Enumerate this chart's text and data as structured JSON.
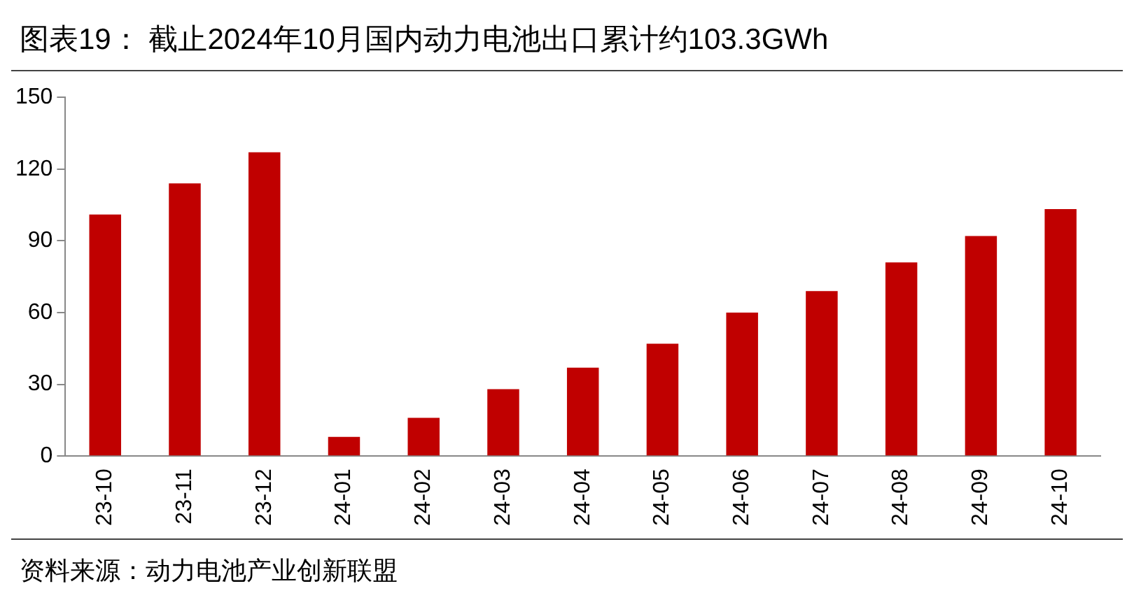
{
  "chart_data": {
    "type": "bar",
    "title": "图表19：  截止2024年10月国内动力电池出口累计约103.3GWh",
    "categories": [
      "23-10",
      "23-11",
      "23-12",
      "24-01",
      "24-02",
      "24-03",
      "24-04",
      "24-05",
      "24-06",
      "24-07",
      "24-08",
      "24-09",
      "24-10"
    ],
    "values": [
      101,
      114,
      127,
      8,
      16,
      28,
      37,
      47,
      60,
      69,
      81,
      92,
      103.3
    ],
    "color": "#c00000",
    "ylim": [
      0,
      150
    ],
    "yticks": [
      0,
      30,
      60,
      90,
      120,
      150
    ],
    "grid": false,
    "annotations": [
      "资料来源：动力电池产业创新联盟"
    ]
  }
}
